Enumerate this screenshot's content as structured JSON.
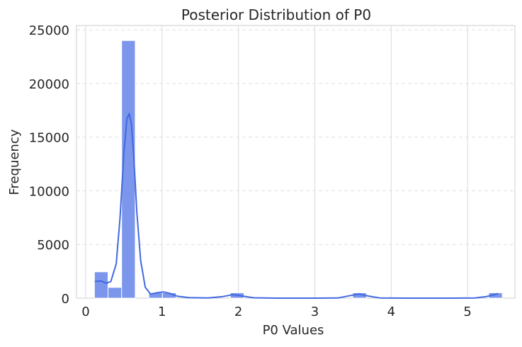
{
  "chart_data": {
    "type": "bar",
    "title": "Posterior Distribution of P0",
    "xlabel": "P0 Values",
    "ylabel": "Frequency",
    "xlim": [
      -0.12,
      5.62
    ],
    "ylim": [
      0,
      25400
    ],
    "xticks": [
      0,
      1,
      2,
      3,
      4,
      5
    ],
    "yticks": [
      0,
      5000,
      10000,
      15000,
      20000,
      25000
    ],
    "grid": true,
    "bins": [
      {
        "x0": 0.115,
        "x1": 0.293,
        "count": 2450
      },
      {
        "x0": 0.293,
        "x1": 0.471,
        "count": 1000
      },
      {
        "x0": 0.471,
        "x1": 0.649,
        "count": 24000
      },
      {
        "x0": 0.827,
        "x1": 1.005,
        "count": 500
      },
      {
        "x0": 1.005,
        "x1": 1.183,
        "count": 500
      },
      {
        "x0": 1.895,
        "x1": 2.073,
        "count": 500
      },
      {
        "x0": 3.497,
        "x1": 3.675,
        "count": 500
      },
      {
        "x0": 5.277,
        "x1": 5.455,
        "count": 500
      }
    ],
    "kde": [
      [
        0.12,
        1550
      ],
      [
        0.2,
        1600
      ],
      [
        0.27,
        1380
      ],
      [
        0.33,
        1550
      ],
      [
        0.4,
        3200
      ],
      [
        0.45,
        7500
      ],
      [
        0.5,
        13500
      ],
      [
        0.54,
        16700
      ],
      [
        0.57,
        17200
      ],
      [
        0.6,
        16200
      ],
      [
        0.63,
        13200
      ],
      [
        0.67,
        8000
      ],
      [
        0.72,
        3500
      ],
      [
        0.78,
        1000
      ],
      [
        0.85,
        380
      ],
      [
        0.95,
        520
      ],
      [
        1.02,
        580
      ],
      [
        1.1,
        450
      ],
      [
        1.2,
        180
      ],
      [
        1.35,
        50
      ],
      [
        1.6,
        20
      ],
      [
        1.8,
        150
      ],
      [
        1.93,
        330
      ],
      [
        2.05,
        200
      ],
      [
        2.2,
        30
      ],
      [
        2.5,
        0
      ],
      [
        3.0,
        0
      ],
      [
        3.3,
        10
      ],
      [
        3.45,
        220
      ],
      [
        3.58,
        380
      ],
      [
        3.7,
        200
      ],
      [
        3.85,
        20
      ],
      [
        4.2,
        0
      ],
      [
        4.8,
        0
      ],
      [
        5.1,
        10
      ],
      [
        5.25,
        150
      ],
      [
        5.4,
        420
      ]
    ],
    "colors": {
      "bar": "#7b96ea",
      "bar_edge": "#ffffff",
      "line": "#4169e1",
      "grid": "#e0e0e0",
      "axis": "#cccccc"
    }
  }
}
